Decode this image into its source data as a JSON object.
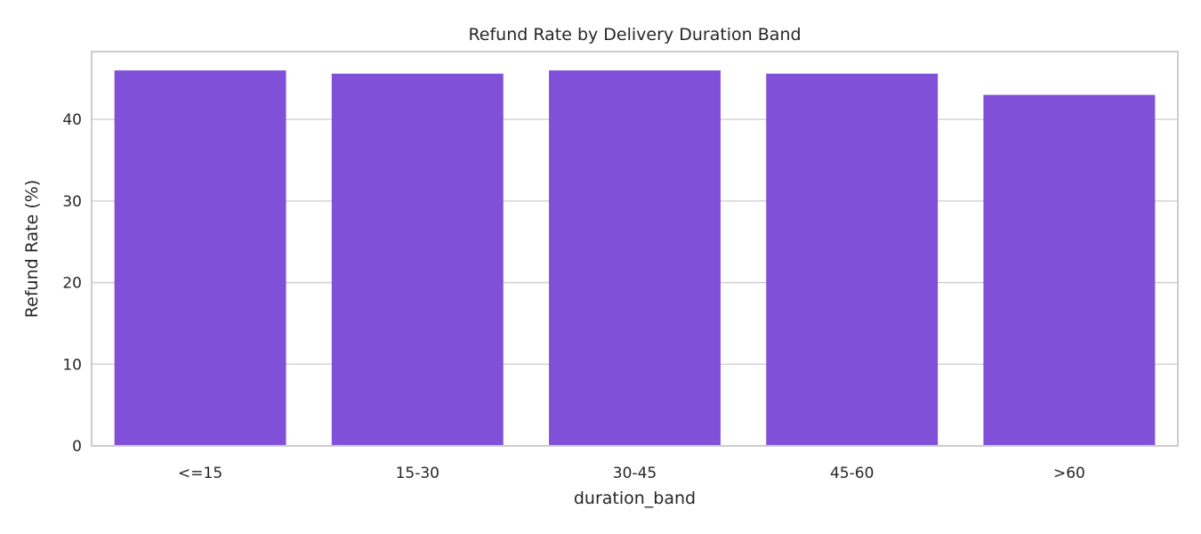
{
  "chart_data": {
    "type": "bar",
    "title": "Refund Rate by Delivery Duration Band",
    "xlabel": "duration_band",
    "ylabel": "Refund Rate (%)",
    "categories": [
      "<=15",
      "15-30",
      "30-45",
      "45-60",
      ">60"
    ],
    "values": [
      46.0,
      45.6,
      46.0,
      45.6,
      43.0
    ],
    "ylim": [
      0,
      48.3
    ],
    "yticks": [
      0,
      10,
      20,
      30,
      40
    ],
    "grid": true,
    "legend": "none",
    "bar_color": "#8150d8"
  }
}
